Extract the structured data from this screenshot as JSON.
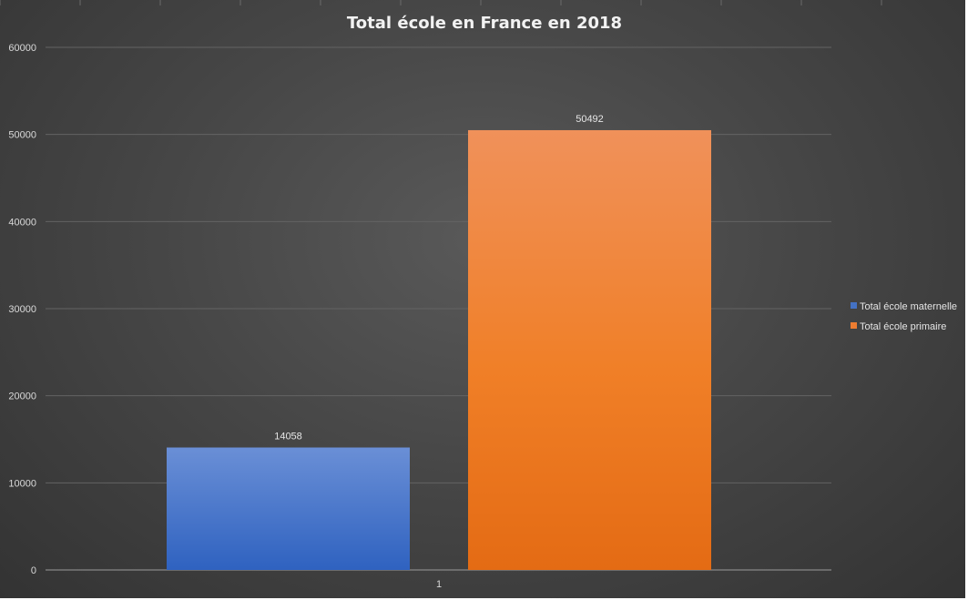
{
  "chart_data": {
    "type": "bar",
    "title": "Total école en France en 2018",
    "categories": [
      "1"
    ],
    "series": [
      {
        "name": "Total école maternelle",
        "values": [
          14058
        ],
        "color": "#4472c4"
      },
      {
        "name": "Total école primaire",
        "values": [
          50492
        ],
        "color": "#ed7d31"
      }
    ],
    "ylim": [
      0,
      60000
    ],
    "yticks": [
      "0",
      "10000",
      "20000",
      "30000",
      "40000",
      "50000",
      "60000"
    ],
    "grid": true,
    "legend": "right"
  }
}
